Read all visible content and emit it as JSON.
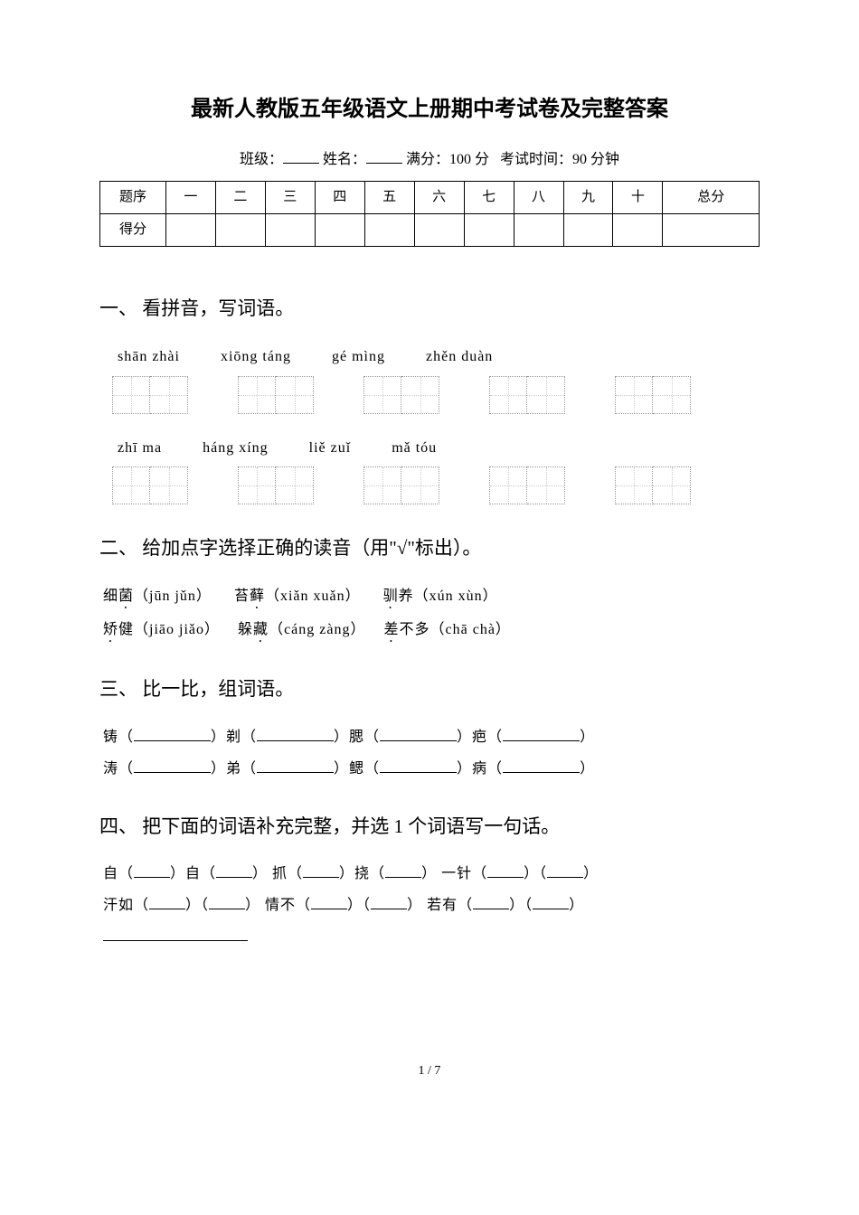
{
  "title": "最新人教版五年级语文上册期中考试卷及完整答案",
  "meta": {
    "class_label": "班级：",
    "name_label": "姓名：",
    "full_score_label": "满分：100 分",
    "time_label": "考试时间：90 分钟"
  },
  "score_table": {
    "row1": [
      "题序",
      "一",
      "二",
      "三",
      "四",
      "五",
      "六",
      "七",
      "八",
      "九",
      "十",
      "总分"
    ],
    "row2_label": "得分"
  },
  "sections": {
    "s1": {
      "heading": "一、 看拼音，写词语。",
      "pinyin_row1": [
        "shān zhài",
        "xiōng táng",
        "gé mìng",
        "zhěn duàn"
      ],
      "pinyin_row2": [
        "zhī ma",
        "háng xíng",
        "liě zuǐ",
        "mǎ tóu"
      ]
    },
    "s2": {
      "heading": "二、 给加点字选择正确的读音（用\"√\"标出）。",
      "items_row1": [
        {
          "pre": "细",
          "dot": "菌",
          "py": "（jūn  jǔn）"
        },
        {
          "pre": "苔",
          "dot": "藓",
          "py": "（xiǎn  xuǎn）"
        },
        {
          "pre": "",
          "dot": "驯",
          "post": "养",
          "py": "（xún  xùn）"
        }
      ],
      "items_row2": [
        {
          "pre": "",
          "dot": "矫",
          "post": "健",
          "py": "（jiāo  jiǎo）"
        },
        {
          "pre": "躲",
          "dot": "藏",
          "py": "（cáng  zàng）"
        },
        {
          "pre": "",
          "dot": "差",
          "post": "不多",
          "py": "（chā  chà）"
        }
      ]
    },
    "s3": {
      "heading": "三、 比一比，组词语。",
      "row1": [
        "铸（",
        "）剃（",
        "）腮（",
        "）疤（",
        "）"
      ],
      "row2": [
        "涛（",
        "）弟（",
        "）鳃（",
        "）病（",
        "）"
      ]
    },
    "s4": {
      "heading": "四、 把下面的词语补充完整，并选 1 个词语写一句话。",
      "line1": {
        "a": "自（",
        "b": "）自（",
        "c": "）  抓（",
        "d": "）挠（",
        "e": "）  一针（",
        "f": "）（",
        "g": "）"
      },
      "line2": {
        "a": "汗如（",
        "b": "）（",
        "c": "）  情不（",
        "d": "）（",
        "e": "）  若有（",
        "f": "）（",
        "g": "）"
      }
    }
  },
  "footer": "1 / 7"
}
